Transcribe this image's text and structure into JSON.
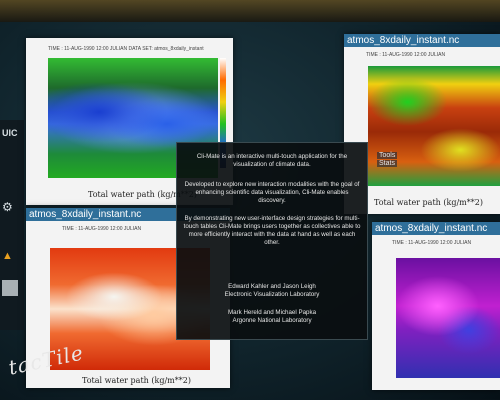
{
  "side_logo": "UIC",
  "watermark": "tacTile",
  "panels": {
    "top_left": {
      "header": "TIME : 11-AUG-1990 12:00 JULIAN      DATA SET: atmos_8xdaily_instant",
      "caption": "Total water path (kg/m**2)"
    },
    "top_right": {
      "title": "atmos_8xdaily_instant.nc",
      "header": "TIME : 11-AUG-1990 12:00 JULIAN",
      "caption": "Total water path (kg/m**2)"
    },
    "bottom_left": {
      "title": "atmos_8xdaily_instant.nc",
      "header": "TIME : 11-AUG-1990 12:00 JULIAN",
      "caption": "Total water path (kg/m**2)"
    },
    "bottom_right": {
      "title": "atmos_8xdaily_instant.nc",
      "header": "TIME : 11-AUG-1990 12:00 JULIAN"
    }
  },
  "overlay_tags": [
    "Tools",
    "Stats"
  ],
  "info": {
    "intro": "Cli-Mate is an interactive multi-touch application for the visualization of climate data.",
    "developed": "Developed to explore new interaction modalities with the goal of enhancing scientific data visualization, Cli-Mate enables discovery.",
    "demonstrating": "By demonstrating new user-interface design strategies for multi-touch tables Cli-Mate brings users together as collectives able to more efficiently interact with the data at hand as well as each other.",
    "credits_1_names": "Edward Kahler and Jason Leigh",
    "credits_1_org": "Electronic Visualization Laboratory",
    "credits_2_names": "Mark Hereld and Michael Papka",
    "credits_2_org": "Argonne National Laboratory"
  }
}
